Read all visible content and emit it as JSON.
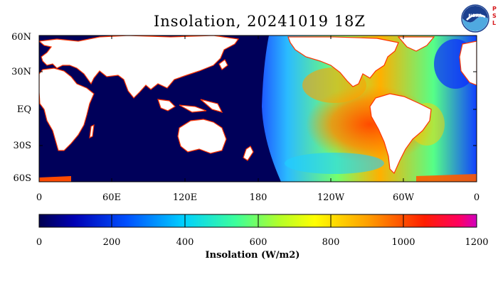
{
  "title": "Insolation, 20241019 18Z",
  "logo": {
    "text": "NOAA",
    "side_text": [
      "P",
      "S",
      "L"
    ]
  },
  "map": {
    "lat_labels": [
      "60N",
      "30N",
      "EQ",
      "30S",
      "60S"
    ],
    "lon_labels": [
      "0",
      "60E",
      "120E",
      "180",
      "120W",
      "60W",
      "0"
    ],
    "colors": {
      "ocean_night": "#00005a",
      "land": "#ffffff",
      "coast": "#ff3300"
    }
  },
  "colorbar": {
    "ticks": [
      "0",
      "200",
      "400",
      "600",
      "800",
      "1000",
      "1200"
    ],
    "label": "Insolation (W/m2)",
    "min": 0,
    "max": 1200,
    "unit": "W/m2"
  }
}
